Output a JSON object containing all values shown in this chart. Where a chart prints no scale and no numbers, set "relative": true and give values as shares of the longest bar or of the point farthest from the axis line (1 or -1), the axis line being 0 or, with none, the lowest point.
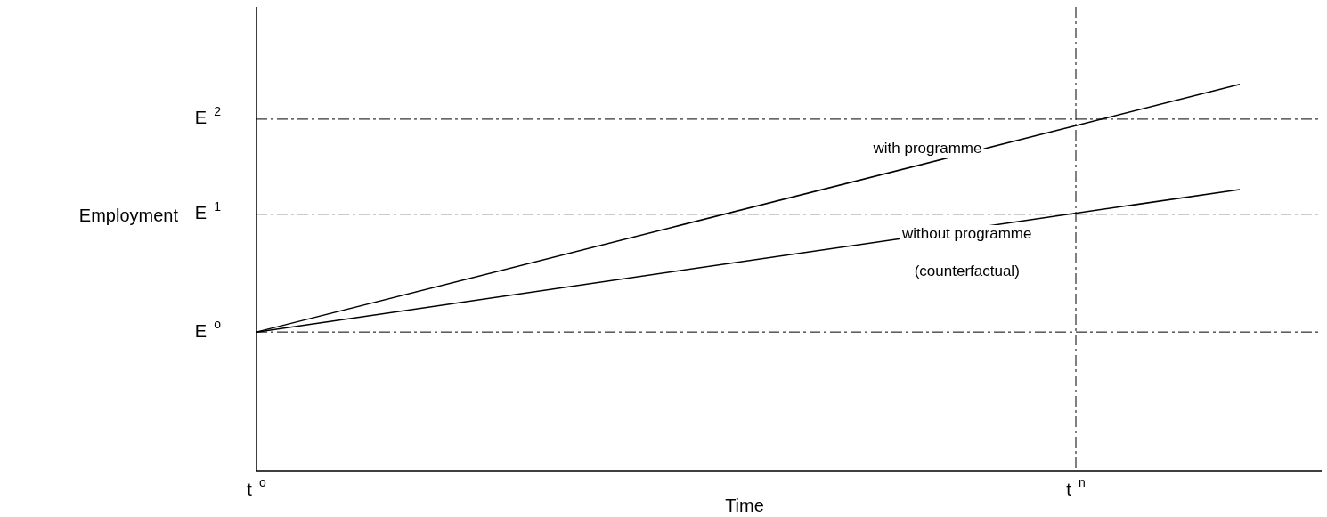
{
  "chart_data": {
    "type": "line",
    "relative": true,
    "xlabel": "Time",
    "ylabel": "Employment",
    "categories": [
      "t$^{o}$",
      null,
      null,
      null,
      null,
      null,
      null,
      null,
      null,
      null,
      "t$^{n}$",
      null,
      null,
      null
    ],
    "series": [
      {
        "color": "#000000",
        "values": [
          0.359,
          null,
          null,
          null,
          null,
          null,
          null,
          null,
          null,
          null,
          null,
          null,
          1.0,
          null
        ]
      },
      {
        "color": "#000000",
        "values": [
          0.359,
          null,
          null,
          null,
          null,
          null,
          null,
          null,
          null,
          null,
          null,
          null,
          0.728,
          null
        ]
      }
    ],
    "ref_lines": [
      {
        "axis": "y",
        "value": 0.359,
        "label": "E$^{o}$",
        "line_style": "dashed",
        "color": "#000000"
      },
      {
        "axis": "y",
        "value": 0.664,
        "label": "E$^{1}$",
        "line_style": "dashed",
        "color": "#000000"
      },
      {
        "axis": "y",
        "value": 0.91,
        "label": "E$^{2}$",
        "line_style": "dashed",
        "color": "#000000"
      },
      {
        "axis": "x",
        "value": "t$^{n}$",
        "line_style": "dashed",
        "color": "#000000"
      }
    ],
    "annotations": [
      "with programme",
      "without programme",
      "(counterfactual)"
    ],
    "legend": false,
    "grid": false,
    "marker": "none",
    "line_style": "solid"
  }
}
